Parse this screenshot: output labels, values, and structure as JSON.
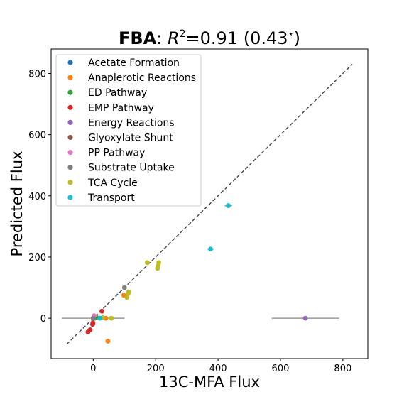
{
  "chart_data": {
    "type": "scatter",
    "title": {
      "bold": "FBA",
      "rest_prefix": ": ",
      "r_symbol": "R",
      "r_exponent": "2",
      "rest_value": "=0.91 (0.43",
      "star": "⋆",
      "rest_suffix": ")"
    },
    "xlabel": "13C-MFA Flux",
    "ylabel": "Predicted Flux",
    "xlim": [
      -135,
      880
    ],
    "ylim": [
      -132,
      880
    ],
    "xticks": [
      0,
      200,
      400,
      600,
      800
    ],
    "yticks": [
      0,
      200,
      400,
      600,
      800
    ],
    "grid": false,
    "legend_position": "upper-left",
    "identity_line": {
      "x": [
        -85,
        830
      ],
      "y": [
        -85,
        830
      ],
      "style": "dashed",
      "color": "#444444"
    },
    "series": [
      {
        "name": "Acetate Formation",
        "color": "#1f77b4",
        "points": [
          {
            "x": 5,
            "y": 0
          }
        ]
      },
      {
        "name": "Anaplerotic Reactions",
        "color": "#ff7f0e",
        "points": [
          {
            "x": 40,
            "y": 0
          },
          {
            "x": 98,
            "y": 75
          },
          {
            "x": 47,
            "y": -75
          }
        ]
      },
      {
        "name": "ED Pathway",
        "color": "#2ca02c",
        "points": [
          {
            "x": 10,
            "y": 3
          }
        ]
      },
      {
        "name": "EMP Pathway",
        "color": "#d62728",
        "points": [
          {
            "x": 28,
            "y": 23
          },
          {
            "x": -1,
            "y": -15
          },
          {
            "x": -2,
            "y": -20
          },
          {
            "x": -10,
            "y": -38
          },
          {
            "x": -17,
            "y": -45
          },
          {
            "x": 2,
            "y": 5
          }
        ]
      },
      {
        "name": "Energy Reactions",
        "color": "#9467bd",
        "points": [
          {
            "x": 680,
            "y": 0,
            "xerr": 108
          }
        ]
      },
      {
        "name": "Glyoxylate Shunt",
        "color": "#8c564b",
        "points": [
          {
            "x": 0,
            "y": 0
          }
        ]
      },
      {
        "name": "PP Pathway",
        "color": "#e377c2",
        "points": [
          {
            "x": 3,
            "y": 8
          }
        ]
      },
      {
        "name": "Substrate Uptake",
        "color": "#7f7f7f",
        "points": [
          {
            "x": 100,
            "y": 100
          },
          {
            "x": 0,
            "y": 0,
            "xerr": 100
          }
        ]
      },
      {
        "name": "TCA Cycle",
        "color": "#bcbd22",
        "points": [
          {
            "x": 173,
            "y": 182
          },
          {
            "x": 210,
            "y": 182
          },
          {
            "x": 208,
            "y": 172
          },
          {
            "x": 206,
            "y": 163
          },
          {
            "x": 113,
            "y": 86
          },
          {
            "x": 112,
            "y": 80
          },
          {
            "x": 108,
            "y": 68
          },
          {
            "x": 58,
            "y": 0
          },
          {
            "x": 30,
            "y": 2
          }
        ]
      },
      {
        "name": "Transport",
        "color": "#17becf",
        "points": [
          {
            "x": 433,
            "y": 368,
            "xerr": 12
          },
          {
            "x": 376,
            "y": 226,
            "xerr": 10
          },
          {
            "x": 22,
            "y": 0
          }
        ]
      }
    ]
  }
}
